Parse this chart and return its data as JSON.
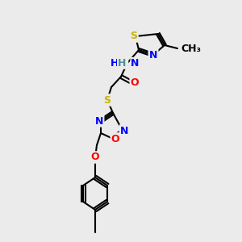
{
  "bg_color": "#ebebeb",
  "atom_colors": {
    "S": "#c8b400",
    "N": "#0000ff",
    "O": "#ff0000",
    "H": "#4a9090",
    "C": "#000000"
  },
  "bond_color": "#000000",
  "font_size": 9,
  "lw": 1.5
}
